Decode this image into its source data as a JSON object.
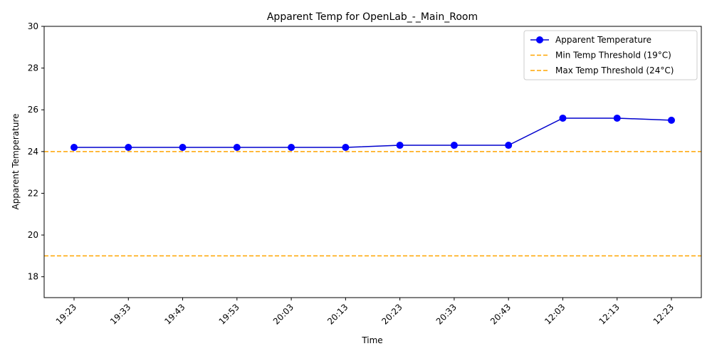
{
  "chart_data": {
    "type": "line",
    "title": "Apparent Temp for OpenLab_-_Main_Room",
    "xlabel": "Time",
    "ylabel": "Apparent Temperature",
    "categories": [
      "19:23",
      "19:33",
      "19:43",
      "19:53",
      "20:03",
      "20:13",
      "20:23",
      "20:33",
      "20:43",
      "12:03",
      "12:13",
      "12:23"
    ],
    "series": [
      {
        "name": "Apparent Temperature",
        "values": [
          24.2,
          24.2,
          24.2,
          24.2,
          24.2,
          24.2,
          24.3,
          24.3,
          24.3,
          25.6,
          25.6,
          25.5
        ],
        "color": "#0000cd",
        "marker_color": "#0000ff"
      }
    ],
    "thresholds": [
      {
        "name": "Min Temp Threshold (19°C)",
        "value": 19,
        "color": "#ffa500",
        "style": "dashed"
      },
      {
        "name": "Max Temp Threshold (24°C)",
        "value": 24,
        "color": "#ffa500",
        "style": "dashed"
      }
    ],
    "ylim": [
      17,
      30
    ],
    "yticks": [
      18,
      20,
      22,
      24,
      26,
      28,
      30
    ],
    "grid": false,
    "legend_position": "top-right"
  }
}
